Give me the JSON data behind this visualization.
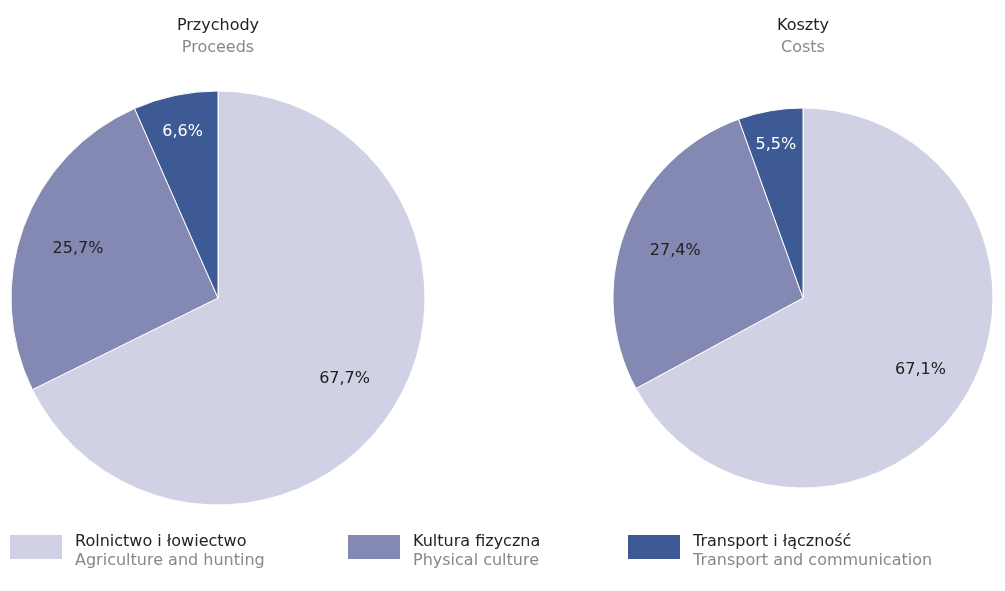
{
  "chart_data": [
    {
      "type": "pie",
      "title": "Przychody",
      "subtitle": "Proceeds",
      "categories": [
        "Rolnictwo i łowiectwo\nAgriculture and hunting",
        "Kultura fizyczna\nPhysical culture",
        "Transport i łączność\nTransport and communication"
      ],
      "values": [
        67.7,
        25.7,
        6.6
      ],
      "value_labels": [
        "67,7%",
        "25,7%",
        "6,6%"
      ],
      "colors": [
        "#d0d1e4",
        "#8489b3",
        "#3d5a95"
      ],
      "legend": "bottom"
    },
    {
      "type": "pie",
      "title": "Koszty",
      "subtitle": "Costs",
      "categories": [
        null,
        null,
        null
      ],
      "values": [
        67.1,
        27.4,
        5.5
      ],
      "value_labels": [
        "67,1%",
        "27,4%",
        "5,5%"
      ],
      "colors": [
        "#d0d1e4",
        "#8489b3",
        "#3d5a95"
      ],
      "legend": false
    }
  ]
}
